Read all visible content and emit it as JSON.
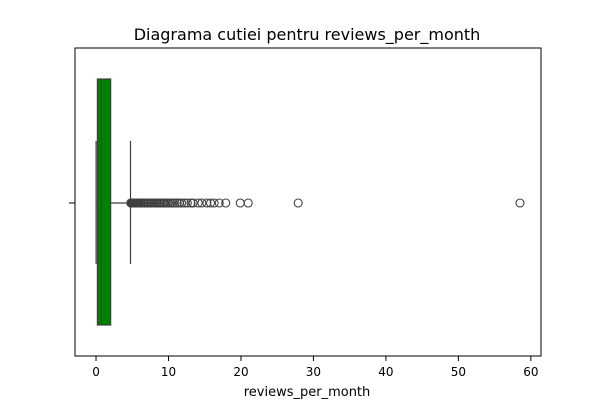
{
  "chart_data": {
    "type": "box",
    "title": "Diagrama cutiei pentru reviews_per_month",
    "xlabel": "reviews_per_month",
    "ylabel": "",
    "xlim": [
      -2.9,
      61.4
    ],
    "xticks": [
      0,
      10,
      20,
      30,
      40,
      50,
      60
    ],
    "grid": false,
    "legend": "none",
    "box": {
      "whisker_low": 0.01,
      "q1": 0.19,
      "median": 0.72,
      "q3": 2.02,
      "whisker_high": 4.76
    },
    "outliers": [
      4.8,
      4.9,
      5.0,
      5.1,
      5.2,
      5.3,
      5.4,
      5.5,
      5.6,
      5.7,
      5.8,
      5.9,
      6.0,
      6.2,
      6.4,
      6.6,
      6.8,
      7.0,
      7.2,
      7.4,
      7.6,
      7.8,
      8.0,
      8.2,
      8.4,
      8.6,
      8.8,
      9.0,
      9.2,
      9.4,
      9.6,
      9.8,
      10.0,
      10.3,
      10.6,
      10.9,
      11.2,
      11.5,
      11.8,
      12.2,
      12.6,
      13.1,
      13.4,
      14.1,
      14.6,
      15.3,
      15.8,
      16.3,
      17.0,
      17.9,
      19.9,
      21.0,
      27.9,
      58.5
    ],
    "colors": {
      "box_fill": "#008000",
      "lines": "#3f3f3f",
      "outlier_edge": "#3f3f3f"
    }
  }
}
